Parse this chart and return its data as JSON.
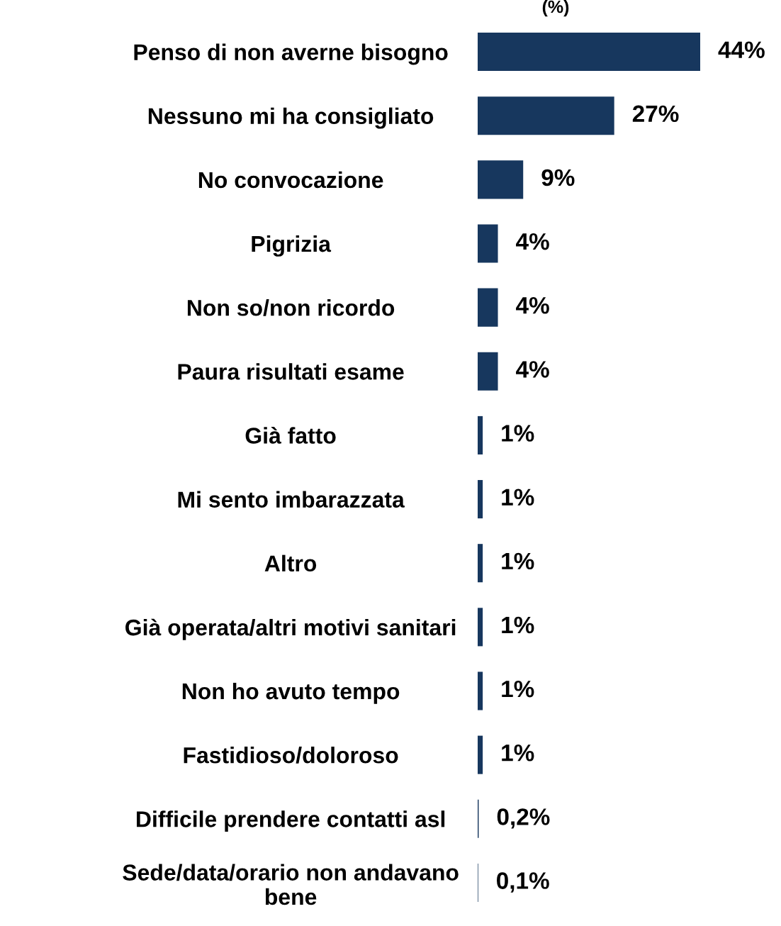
{
  "chart_data": {
    "type": "bar",
    "orientation": "horizontal",
    "title": "(%)",
    "categories": [
      "Penso di non averne bisogno",
      "Nessuno mi ha consigliato",
      "No convocazione",
      "Pigrizia",
      "Non so/non ricordo",
      "Paura risultati esame",
      "Già fatto",
      "Mi sento imbarazzata",
      "Altro",
      "Già operata/altri motivi sanitari",
      "Non ho avuto tempo",
      "Fastidioso/doloroso",
      "Difficile prendere contatti asl",
      "Sede/data/orario non andavano\nbene"
    ],
    "values": [
      44,
      27,
      9,
      4,
      4,
      4,
      1,
      1,
      1,
      1,
      1,
      1,
      0.2,
      0.1
    ],
    "value_labels": [
      "44%",
      "27%",
      "9%",
      "4%",
      "4%",
      "4%",
      "1%",
      "1%",
      "1%",
      "1%",
      "1%",
      "1%",
      "0,2%",
      "0,1%"
    ],
    "color": "#17375e",
    "grid": false,
    "legend": false
  }
}
